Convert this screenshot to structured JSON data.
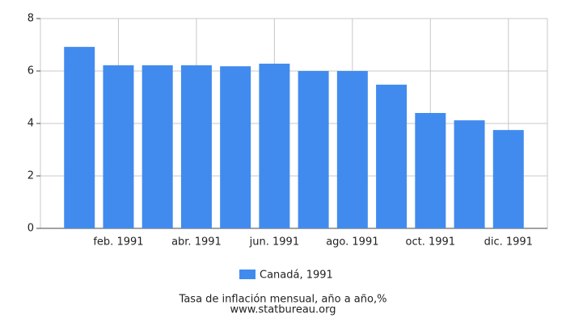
{
  "chart_data": {
    "type": "bar",
    "title": "Tasa de inflación mensual, año a año,%",
    "source": "www.statbureau.org",
    "categories": [
      null,
      "feb. 1991",
      null,
      "abr. 1991",
      null,
      "jun. 1991",
      null,
      "ago. 1991",
      null,
      "oct. 1991",
      null,
      "dic. 1991"
    ],
    "series": [
      {
        "name": "Canadá, 1991",
        "color": "#428bee",
        "values": [
          6.92,
          6.22,
          6.22,
          6.22,
          6.18,
          6.28,
          6.0,
          6.0,
          5.48,
          4.4,
          4.12,
          3.75
        ]
      }
    ],
    "ylim": [
      0,
      8
    ],
    "yticks": [
      0,
      2,
      4,
      6,
      8
    ],
    "grid": true
  }
}
